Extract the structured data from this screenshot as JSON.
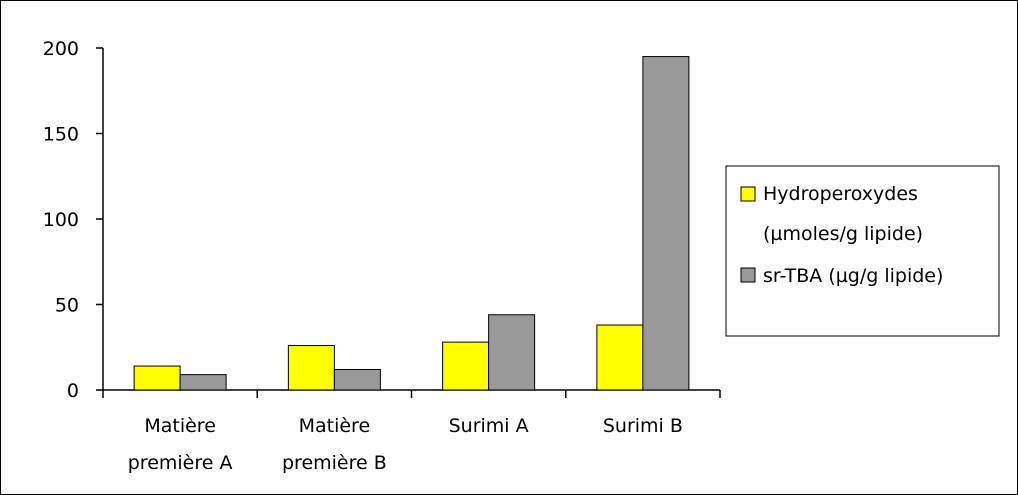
{
  "chart_data": {
    "type": "bar",
    "categories": [
      [
        "Matière",
        "première A"
      ],
      [
        "Matière",
        "première B"
      ],
      [
        "Surimi A"
      ],
      [
        "Surimi B"
      ]
    ],
    "series": [
      {
        "name_lines": [
          "Hydroperoxydes",
          "(µmoles/g lipide)"
        ],
        "color": "#ffff00",
        "values": [
          14,
          26,
          28,
          38
        ]
      },
      {
        "name_lines": [
          "sr-TBA (µg/g lipide)"
        ],
        "color": "#999999",
        "values": [
          9,
          12,
          44,
          195
        ]
      }
    ],
    "ylim": [
      0,
      200
    ],
    "yticks": [
      "0",
      "50",
      "100",
      "150",
      "200"
    ],
    "ytick_values": [
      0,
      50,
      100,
      150,
      200
    ],
    "grid": false,
    "legend_position": "right"
  }
}
